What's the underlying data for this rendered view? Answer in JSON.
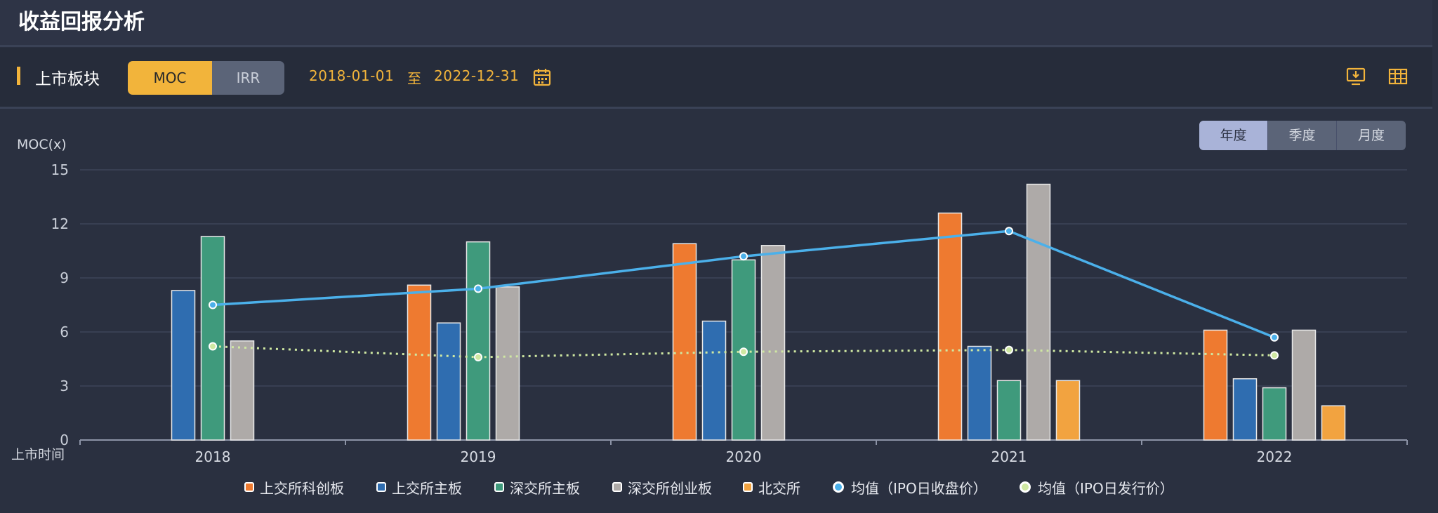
{
  "header": {
    "title": "收益回报分析"
  },
  "toolbar": {
    "section_label": "上市板块",
    "metric_tabs": [
      {
        "label": "MOC",
        "active": true
      },
      {
        "label": "IRR",
        "active": false
      }
    ],
    "date_start": "2018-01-01",
    "date_sep": "至",
    "date_end": "2022-12-31",
    "icons": [
      "calendar-icon",
      "download-icon",
      "table-icon"
    ]
  },
  "period_tabs": [
    {
      "label": "年度",
      "active": true
    },
    {
      "label": "季度",
      "active": false
    },
    {
      "label": "月度",
      "active": false
    }
  ],
  "colors": {
    "accent": "#f2b43b",
    "kcb": "#ee7a30",
    "sh_main": "#2f6db0",
    "sz_main": "#3f9a7c",
    "cyb": "#aeaaa8",
    "bj": "#f2a340",
    "avg_close": "#4bb0ea",
    "avg_issue": "#cfe8a2"
  },
  "chart_data": {
    "type": "bar",
    "title": "",
    "ylabel": "MOC(x)",
    "xlabel": "上市时间",
    "ylim": [
      0,
      15
    ],
    "yticks": [
      0,
      3,
      6,
      9,
      12,
      15
    ],
    "grid": true,
    "legend_position": "bottom",
    "categories": [
      "2018",
      "2019",
      "2020",
      "2021",
      "2022"
    ],
    "series": [
      {
        "name": "上交所科创板",
        "kind": "bar",
        "color": "#ee7a30",
        "values": [
          null,
          8.6,
          10.9,
          12.6,
          6.1
        ]
      },
      {
        "name": "上交所主板",
        "kind": "bar",
        "color": "#2f6db0",
        "values": [
          8.3,
          6.5,
          6.6,
          5.2,
          3.4
        ]
      },
      {
        "name": "深交所主板",
        "kind": "bar",
        "color": "#3f9a7c",
        "values": [
          11.3,
          11.0,
          10.0,
          3.3,
          2.9
        ]
      },
      {
        "name": "深交所创业板",
        "kind": "bar",
        "color": "#aeaaa8",
        "values": [
          5.5,
          8.5,
          10.8,
          14.2,
          6.1
        ]
      },
      {
        "name": "北交所",
        "kind": "bar",
        "color": "#f2a340",
        "values": [
          null,
          null,
          null,
          3.3,
          1.9
        ]
      },
      {
        "name": "均值（IPO日收盘价）",
        "kind": "line",
        "color": "#4bb0ea",
        "values": [
          7.5,
          8.4,
          10.2,
          11.6,
          5.7
        ]
      },
      {
        "name": "均值（IPO日发行价）",
        "kind": "line",
        "color": "#cfe8a2",
        "dashed": true,
        "values": [
          5.2,
          4.6,
          4.9,
          5.0,
          4.7
        ]
      }
    ]
  }
}
